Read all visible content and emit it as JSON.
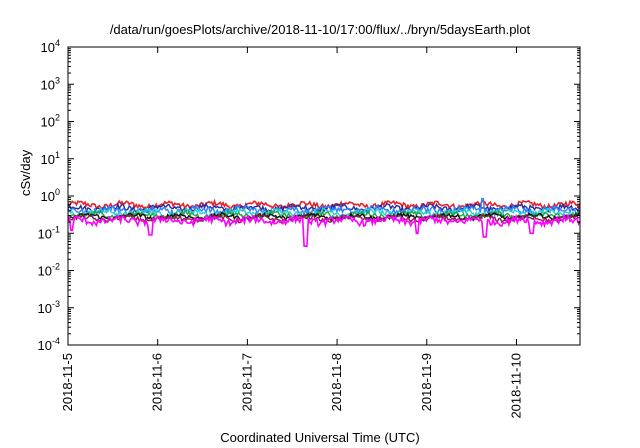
{
  "chart_data": {
    "type": "line",
    "title": "/data/run/goesPlots/archive/2018-11-10/17:00/flux/../bryn/5daysEarth.plot",
    "xlabel": "Coordinated Universal Time (UTC)",
    "ylabel": "cSv/day",
    "yscale": "log",
    "ylim": [
      0.0001,
      10000
    ],
    "yticks": [
      {
        "value": 0.0001,
        "base": "10",
        "exp": "-4"
      },
      {
        "value": 0.001,
        "base": "10",
        "exp": "-3"
      },
      {
        "value": 0.01,
        "base": "10",
        "exp": "-2"
      },
      {
        "value": 0.1,
        "base": "10",
        "exp": "-1"
      },
      {
        "value": 1,
        "base": "10",
        "exp": "0"
      },
      {
        "value": 10,
        "base": "10",
        "exp": "1"
      },
      {
        "value": 100,
        "base": "10",
        "exp": "2"
      },
      {
        "value": 1000,
        "base": "10",
        "exp": "3"
      },
      {
        "value": 10000,
        "base": "10",
        "exp": "4"
      }
    ],
    "xlim": [
      "2018-11-05T00:00",
      "2018-11-10T17:00"
    ],
    "xticks": [
      "2018-11-5",
      "2018-11-6",
      "2018-11-7",
      "2018-11-8",
      "2018-11-9",
      "2018-11-10"
    ],
    "grid": false,
    "series": [
      {
        "color": "#e8202a",
        "base": 0.58,
        "noise": 0.1
      },
      {
        "color": "#2a2a9a",
        "base": 0.48,
        "noise": 0.09
      },
      {
        "color": "#2f7fff",
        "base": 0.42,
        "noise": 0.1
      },
      {
        "color": "#24d4d4",
        "base": 0.36,
        "noise": 0.07
      },
      {
        "color": "#22a845",
        "base": 0.31,
        "noise": 0.05
      },
      {
        "color": "#111111",
        "base": 0.28,
        "noise": 0.04
      },
      {
        "color": "#8a1f4a",
        "base": 0.25,
        "noise": 0.04
      },
      {
        "color": "#ff00ff",
        "base": 0.22,
        "noise": 0.05
      }
    ],
    "dips": [
      {
        "x": "2018-11-05T01:00",
        "value": 0.12
      },
      {
        "x": "2018-11-05T22:00",
        "value": 0.09
      },
      {
        "x": "2018-11-07T15:30",
        "value": 0.045
      },
      {
        "x": "2018-11-08T21:30",
        "value": 0.1
      },
      {
        "x": "2018-11-09T15:30",
        "value": 0.08
      },
      {
        "x": "2018-11-10T04:00",
        "value": 0.1
      }
    ],
    "spikes": [
      {
        "x": "2018-11-09T15:00",
        "value": 0.85
      }
    ]
  }
}
